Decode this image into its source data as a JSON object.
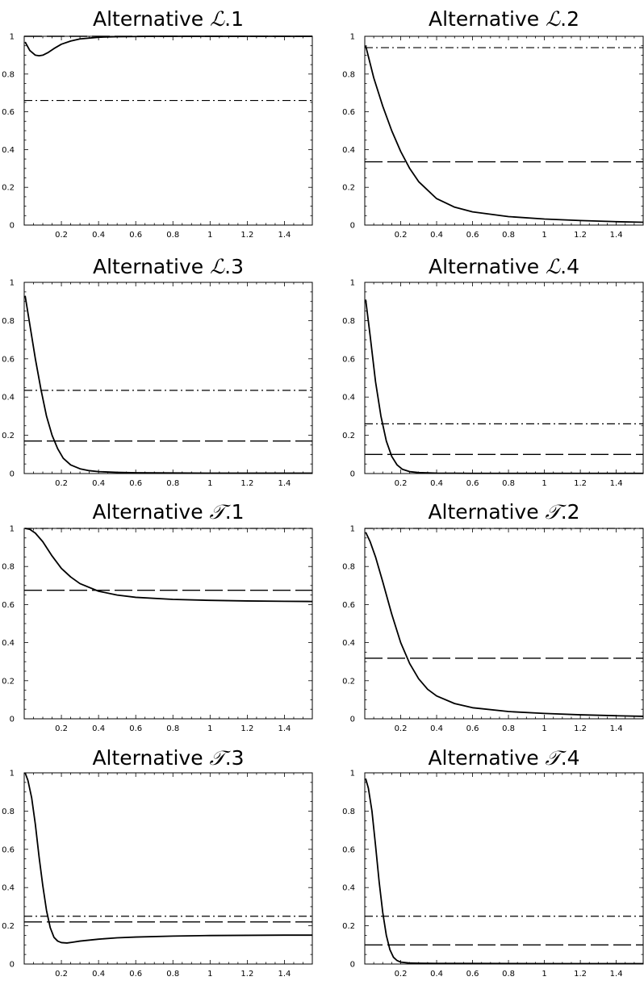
{
  "chart_data": [
    {
      "type": "line",
      "title_prefix": "Alternative",
      "title_symbol": "ℒ",
      "title_suffix": ".1",
      "xlim": [
        0,
        1.55
      ],
      "ylim": [
        0,
        1
      ],
      "xticks": [
        0.2,
        0.4,
        0.6,
        0.8,
        1,
        1.2,
        1.4
      ],
      "yticks": [
        0,
        0.2,
        0.4,
        0.6,
        0.8,
        1
      ],
      "reference_lines": [
        {
          "style": "dashed",
          "y": 1.0
        },
        {
          "style": "dashdot",
          "y": 0.66
        }
      ],
      "curve": {
        "x": [
          0.005,
          0.03,
          0.06,
          0.08,
          0.1,
          0.13,
          0.16,
          0.2,
          0.25,
          0.3,
          0.4,
          0.5,
          0.7,
          1.0,
          1.55
        ],
        "y": [
          0.97,
          0.925,
          0.9,
          0.897,
          0.9,
          0.915,
          0.935,
          0.958,
          0.975,
          0.986,
          0.995,
          0.998,
          1.0,
          1.0,
          1.0
        ]
      }
    },
    {
      "type": "line",
      "title_prefix": "Alternative",
      "title_symbol": "ℒ",
      "title_suffix": ".2",
      "xlim": [
        0,
        1.55
      ],
      "ylim": [
        0,
        1
      ],
      "xticks": [
        0.2,
        0.4,
        0.6,
        0.8,
        1,
        1.2,
        1.4
      ],
      "yticks": [
        0,
        0.2,
        0.4,
        0.6,
        0.8,
        1
      ],
      "reference_lines": [
        {
          "style": "dashdot",
          "y": 0.94
        },
        {
          "style": "dashed",
          "y": 0.335
        }
      ],
      "curve": {
        "x": [
          0.005,
          0.05,
          0.1,
          0.15,
          0.2,
          0.25,
          0.3,
          0.4,
          0.5,
          0.6,
          0.8,
          1.0,
          1.2,
          1.4,
          1.55
        ],
        "y": [
          0.95,
          0.78,
          0.63,
          0.5,
          0.39,
          0.3,
          0.23,
          0.14,
          0.095,
          0.07,
          0.045,
          0.032,
          0.024,
          0.018,
          0.015
        ]
      }
    },
    {
      "type": "line",
      "title_prefix": "Alternative",
      "title_symbol": "ℒ",
      "title_suffix": ".3",
      "xlim": [
        0,
        1.55
      ],
      "ylim": [
        0,
        1
      ],
      "xticks": [
        0.2,
        0.4,
        0.6,
        0.8,
        1,
        1.2,
        1.4
      ],
      "yticks": [
        0,
        0.2,
        0.4,
        0.6,
        0.8,
        1
      ],
      "reference_lines": [
        {
          "style": "dashdot",
          "y": 0.435
        },
        {
          "style": "dashed",
          "y": 0.17
        }
      ],
      "curve": {
        "x": [
          0.005,
          0.03,
          0.06,
          0.09,
          0.12,
          0.15,
          0.18,
          0.21,
          0.25,
          0.3,
          0.35,
          0.4,
          0.5,
          0.6,
          0.8,
          1.0,
          1.55
        ],
        "y": [
          0.93,
          0.78,
          0.6,
          0.44,
          0.3,
          0.2,
          0.13,
          0.08,
          0.045,
          0.025,
          0.015,
          0.01,
          0.006,
          0.004,
          0.003,
          0.002,
          0.002
        ]
      }
    },
    {
      "type": "line",
      "title_prefix": "Alternative",
      "title_symbol": "ℒ",
      "title_suffix": ".4",
      "xlim": [
        0,
        1.55
      ],
      "ylim": [
        0,
        1
      ],
      "xticks": [
        0.2,
        0.4,
        0.6,
        0.8,
        1,
        1.2,
        1.4
      ],
      "yticks": [
        0,
        0.2,
        0.4,
        0.6,
        0.8,
        1
      ],
      "reference_lines": [
        {
          "style": "dashdot",
          "y": 0.26
        },
        {
          "style": "dashed",
          "y": 0.1
        }
      ],
      "curve": {
        "x": [
          0.005,
          0.03,
          0.06,
          0.09,
          0.12,
          0.15,
          0.18,
          0.21,
          0.25,
          0.3,
          0.4,
          0.6,
          1.0,
          1.55
        ],
        "y": [
          0.91,
          0.72,
          0.48,
          0.3,
          0.17,
          0.09,
          0.045,
          0.022,
          0.01,
          0.005,
          0.002,
          0.001,
          0.001,
          0.001
        ]
      }
    },
    {
      "type": "line",
      "title_prefix": "Alternative",
      "title_symbol": "𝒯",
      "title_suffix": ".1",
      "xlim": [
        0,
        1.55
      ],
      "ylim": [
        0,
        1
      ],
      "xticks": [
        0.2,
        0.4,
        0.6,
        0.8,
        1,
        1.2,
        1.4
      ],
      "yticks": [
        0,
        0.2,
        0.4,
        0.6,
        0.8,
        1
      ],
      "reference_lines": [
        {
          "style": "dashdot",
          "y": 1.0
        },
        {
          "style": "dashed",
          "y": 0.675
        }
      ],
      "curve": {
        "x": [
          0.005,
          0.03,
          0.06,
          0.1,
          0.15,
          0.2,
          0.25,
          0.3,
          0.4,
          0.5,
          0.6,
          0.8,
          1.0,
          1.2,
          1.4,
          1.55
        ],
        "y": [
          1.0,
          0.995,
          0.975,
          0.93,
          0.855,
          0.79,
          0.745,
          0.71,
          0.67,
          0.65,
          0.638,
          0.627,
          0.622,
          0.619,
          0.617,
          0.616
        ]
      }
    },
    {
      "type": "line",
      "title_prefix": "Alternative",
      "title_symbol": "𝒯",
      "title_suffix": ".2",
      "xlim": [
        0,
        1.55
      ],
      "ylim": [
        0,
        1
      ],
      "xticks": [
        0.2,
        0.4,
        0.6,
        0.8,
        1,
        1.2,
        1.4
      ],
      "yticks": [
        0,
        0.2,
        0.4,
        0.6,
        0.8,
        1
      ],
      "reference_lines": [
        {
          "style": "dashdot",
          "y": 1.0
        },
        {
          "style": "dashed",
          "y": 0.318
        }
      ],
      "curve": {
        "x": [
          0.005,
          0.03,
          0.06,
          0.1,
          0.15,
          0.2,
          0.25,
          0.3,
          0.35,
          0.4,
          0.5,
          0.6,
          0.8,
          1.0,
          1.2,
          1.4,
          1.55
        ],
        "y": [
          0.98,
          0.93,
          0.85,
          0.72,
          0.55,
          0.4,
          0.29,
          0.21,
          0.155,
          0.12,
          0.08,
          0.058,
          0.038,
          0.028,
          0.021,
          0.016,
          0.013
        ]
      }
    },
    {
      "type": "line",
      "title_prefix": "Alternative",
      "title_symbol": "𝒯",
      "title_suffix": ".3",
      "xlim": [
        0,
        1.55
      ],
      "ylim": [
        0,
        1
      ],
      "xticks": [
        0.2,
        0.4,
        0.6,
        0.8,
        1,
        1.2,
        1.4
      ],
      "yticks": [
        0,
        0.2,
        0.4,
        0.6,
        0.8,
        1
      ],
      "reference_lines": [
        {
          "style": "dashdot",
          "y": 0.25
        },
        {
          "style": "dashed",
          "y": 0.22
        }
      ],
      "curve": {
        "x": [
          0.005,
          0.02,
          0.04,
          0.06,
          0.08,
          0.1,
          0.12,
          0.14,
          0.16,
          0.18,
          0.2,
          0.23,
          0.26,
          0.3,
          0.4,
          0.5,
          0.6,
          0.8,
          1.0,
          1.2,
          1.4,
          1.55
        ],
        "y": [
          1.0,
          0.96,
          0.87,
          0.73,
          0.56,
          0.41,
          0.28,
          0.19,
          0.14,
          0.12,
          0.112,
          0.11,
          0.114,
          0.12,
          0.13,
          0.137,
          0.141,
          0.146,
          0.149,
          0.15,
          0.151,
          0.151
        ]
      }
    },
    {
      "type": "line",
      "title_prefix": "Alternative",
      "title_symbol": "𝒯",
      "title_suffix": ".4",
      "xlim": [
        0,
        1.55
      ],
      "ylim": [
        0,
        1
      ],
      "xticks": [
        0.2,
        0.4,
        0.6,
        0.8,
        1,
        1.2,
        1.4
      ],
      "yticks": [
        0,
        0.2,
        0.4,
        0.6,
        0.8,
        1
      ],
      "reference_lines": [
        {
          "style": "dashdot",
          "y": 0.25
        },
        {
          "style": "dashed",
          "y": 0.1
        }
      ],
      "curve": {
        "x": [
          0.005,
          0.02,
          0.04,
          0.06,
          0.08,
          0.1,
          0.12,
          0.14,
          0.16,
          0.18,
          0.2,
          0.25,
          0.3,
          0.4,
          0.6,
          1.0,
          1.55
        ],
        "y": [
          0.97,
          0.92,
          0.8,
          0.62,
          0.43,
          0.27,
          0.15,
          0.075,
          0.035,
          0.018,
          0.01,
          0.005,
          0.004,
          0.003,
          0.003,
          0.002,
          0.002
        ]
      }
    }
  ]
}
